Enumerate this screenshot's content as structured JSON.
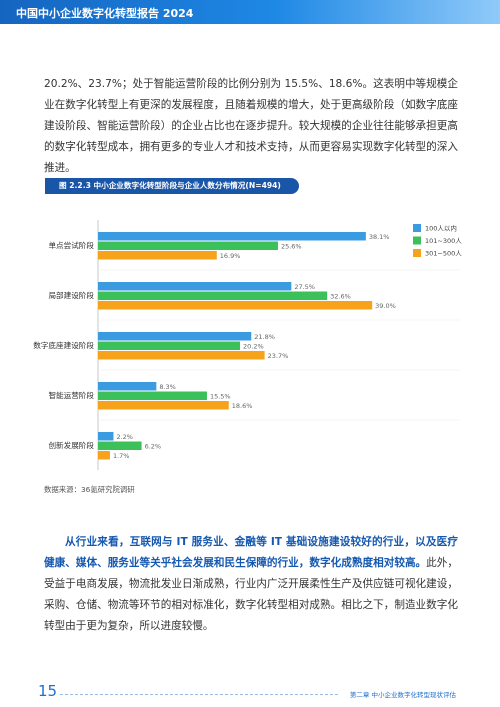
{
  "header": {
    "title": "中国中小企业数字化转型报告 2024"
  },
  "paragraphs": [
    {
      "text": "20.2%、23.7%；处于智能运营阶段的比例分别为 15.5%、18.6%。这表明中等规模企业在数字化转型上有更深的发展程度，且随着规模的增大，处于更高级阶段（如数字底座建设阶段、智能运营阶段）的企业占比也在逐步提升。较大规模的企业往往能够承担更高的数字化转型成本，拥有更多的专业人才和技术支持，从而更容易实现数字化转型的深入推进。"
    },
    {
      "bold": "从行业来看，互联网与 IT 服务业、金融等 IT 基础设施建设较好的行业，以及医疗健康、媒体、服务业等关乎社会发展和民生保障的行业，数字化成熟度相对较高。",
      "text": "此外，受益于电商发展，物流批发业日渐成熟，行业内广泛开展柔性生产及供应链可视化建设，采购、仓储、物流等环节的相对标准化，数字化转型相对成熟。相比之下，制造业数字化转型由于更为复杂，所以进度较慢。"
    }
  ],
  "figure": {
    "caption": "图 2.2.3 中小企业数字化转型阶段与企业人数分布情况(N=494)",
    "source": "数据来源：36氪研究院调研"
  },
  "chart_data": {
    "type": "bar",
    "orientation": "horizontal",
    "legend": "upper right",
    "categories": [
      "单点尝试阶段",
      "局部建设阶段",
      "数字底座建设阶段",
      "智能运营阶段",
      "创新发展阶段"
    ],
    "series": [
      {
        "name": "100人以内",
        "color": "#3b9be0",
        "values": [
          38.1,
          27.5,
          21.8,
          8.3,
          2.2
        ],
        "value_labels": [
          "38.1%",
          "27.5%",
          "21.8%",
          "8.3%",
          "2.2%"
        ]
      },
      {
        "name": "101~300人",
        "color": "#3cc15a",
        "values": [
          25.6,
          32.6,
          20.2,
          15.5,
          6.2
        ],
        "value_labels": [
          "25.6%",
          "32.6%",
          "20.2%",
          "15.5%",
          "6.2%"
        ]
      },
      {
        "name": "301~500人",
        "color": "#f7a21b",
        "values": [
          16.9,
          39.0,
          23.7,
          18.6,
          1.7
        ],
        "value_labels": [
          "16.9%",
          "39.0%",
          "23.7%",
          "18.6%",
          "1.7%"
        ]
      }
    ]
  },
  "footer": {
    "page": "15",
    "chapter": "第二章 中小企业数字化转型现状评估"
  }
}
